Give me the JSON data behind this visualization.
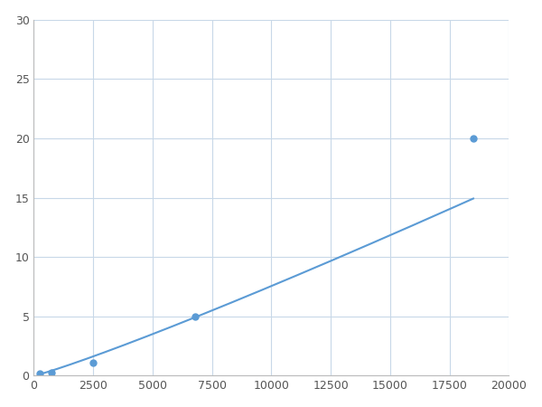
{
  "x": [
    250,
    750,
    2500,
    6800,
    18500
  ],
  "y": [
    0.2,
    0.3,
    1.1,
    5.0,
    20.0
  ],
  "line_color": "#5b9bd5",
  "marker_color": "#5b9bd5",
  "marker_size": 5,
  "line_width": 1.5,
  "xlim": [
    0,
    20000
  ],
  "ylim": [
    0,
    30
  ],
  "xticks": [
    0,
    2500,
    5000,
    7500,
    10000,
    12500,
    15000,
    17500,
    20000
  ],
  "yticks": [
    0,
    5,
    10,
    15,
    20,
    25,
    30
  ],
  "grid_color": "#c8d8e8",
  "background_color": "#ffffff",
  "figsize": [
    6.0,
    4.5
  ],
  "dpi": 100
}
